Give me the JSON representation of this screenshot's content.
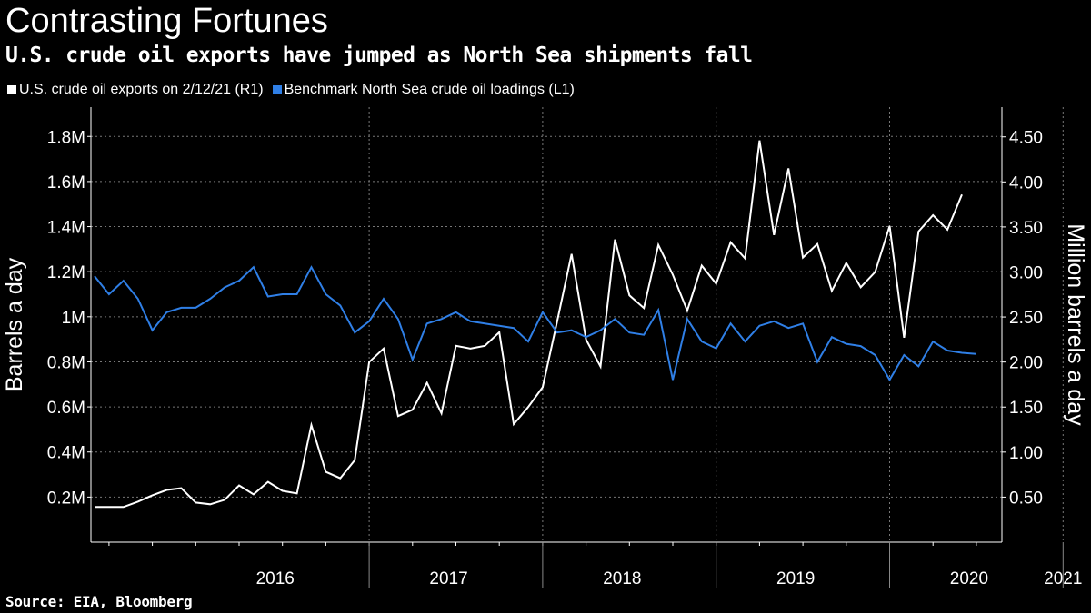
{
  "title": "Contrasting Fortunes",
  "subtitle": "U.S. crude oil exports have jumped as North Sea shipments fall",
  "source": "Source: EIA, Bloomberg",
  "colors": {
    "background": "#000000",
    "us_series": "#ffffff",
    "north_sea_series": "#2f7fe6",
    "grid": "#777777"
  },
  "chart_data": {
    "type": "line",
    "title": "Contrasting Fortunes",
    "subtitle": "U.S. crude oil exports have jumped as North Sea shipments fall",
    "legend": [
      {
        "label": "U.S. crude oil exports on 2/12/21 (R1)",
        "color": "#ffffff"
      },
      {
        "label": "Benchmark North Sea crude oil loadings (L1)",
        "color": "#2f7fe6"
      }
    ],
    "legend_position": "top-left",
    "grid": true,
    "ylabel_left": "Barrels a day",
    "ylabel_right": "Million barrels a day",
    "yticks_left": [
      "0.2M",
      "0.4M",
      "0.6M",
      "0.8M",
      "1M",
      "1.2M",
      "1.4M",
      "1.6M",
      "1.8M"
    ],
    "yticks_left_values": [
      0.2,
      0.4,
      0.6,
      0.8,
      1.0,
      1.2,
      1.4,
      1.6,
      1.8
    ],
    "yticks_right": [
      "0.50",
      "1.00",
      "1.50",
      "2.00",
      "2.50",
      "3.00",
      "3.50",
      "4.00",
      "4.50"
    ],
    "yticks_right_values": [
      0.5,
      1.0,
      1.5,
      2.0,
      2.5,
      3.0,
      3.5,
      4.0,
      4.5
    ],
    "ylim_left": [
      0,
      1.93
    ],
    "ylim_right": [
      0,
      4.83
    ],
    "x_start": "2015-12",
    "x_end": "2021-03",
    "year_labels": [
      {
        "label": "2016",
        "center": 12.5
      },
      {
        "label": "2017",
        "center": 24.5
      },
      {
        "label": "2018",
        "center": 36.5
      },
      {
        "label": "2019",
        "center": 48.5
      },
      {
        "label": "2020",
        "center": 60.5
      },
      {
        "label": "2021",
        "center": 67.0
      }
    ],
    "year_separators": [
      19,
      31,
      43,
      55,
      67
    ],
    "series": [
      {
        "name": "U.S. crude oil exports on 2/12/21 (R1)",
        "axis": "right",
        "color": "#ffffff",
        "start_month": 0,
        "values": [
          0.39,
          0.39,
          0.39,
          0.45,
          0.52,
          0.58,
          0.6,
          0.44,
          0.42,
          0.47,
          0.63,
          0.53,
          0.67,
          0.57,
          0.54,
          1.3,
          0.78,
          0.71,
          0.91,
          2.0,
          2.15,
          1.4,
          1.47,
          1.77,
          1.43,
          2.18,
          2.15,
          2.18,
          2.33,
          1.31,
          1.5,
          1.72,
          2.45,
          3.2,
          2.25,
          1.95,
          3.36,
          2.74,
          2.6,
          3.3,
          2.97,
          2.57,
          3.07,
          2.87,
          3.33,
          3.15,
          4.46,
          3.41,
          4.15,
          3.16,
          3.31,
          2.79,
          3.1,
          2.83,
          3.0,
          3.51,
          2.27,
          3.45,
          3.63,
          3.47,
          3.86
        ]
      },
      {
        "name": "Benchmark North Sea crude oil loadings (L1)",
        "axis": "left",
        "color": "#2f7fe6",
        "start_month": 0,
        "values": [
          1.18,
          1.1,
          1.16,
          1.08,
          0.94,
          1.02,
          1.04,
          1.04,
          1.08,
          1.13,
          1.16,
          1.22,
          1.09,
          1.1,
          1.1,
          1.22,
          1.1,
          1.05,
          0.93,
          0.98,
          1.08,
          0.99,
          0.81,
          0.97,
          0.99,
          1.02,
          0.98,
          0.97,
          0.96,
          0.95,
          0.89,
          1.02,
          0.93,
          0.94,
          0.91,
          0.94,
          0.99,
          0.93,
          0.92,
          1.03,
          0.72,
          0.99,
          0.89,
          0.86,
          0.97,
          0.89,
          0.96,
          0.98,
          0.95,
          0.97,
          0.8,
          0.91,
          0.88,
          0.87,
          0.83,
          0.72,
          0.83,
          0.78,
          0.89,
          0.85,
          0.84,
          0.835
        ]
      }
    ]
  }
}
